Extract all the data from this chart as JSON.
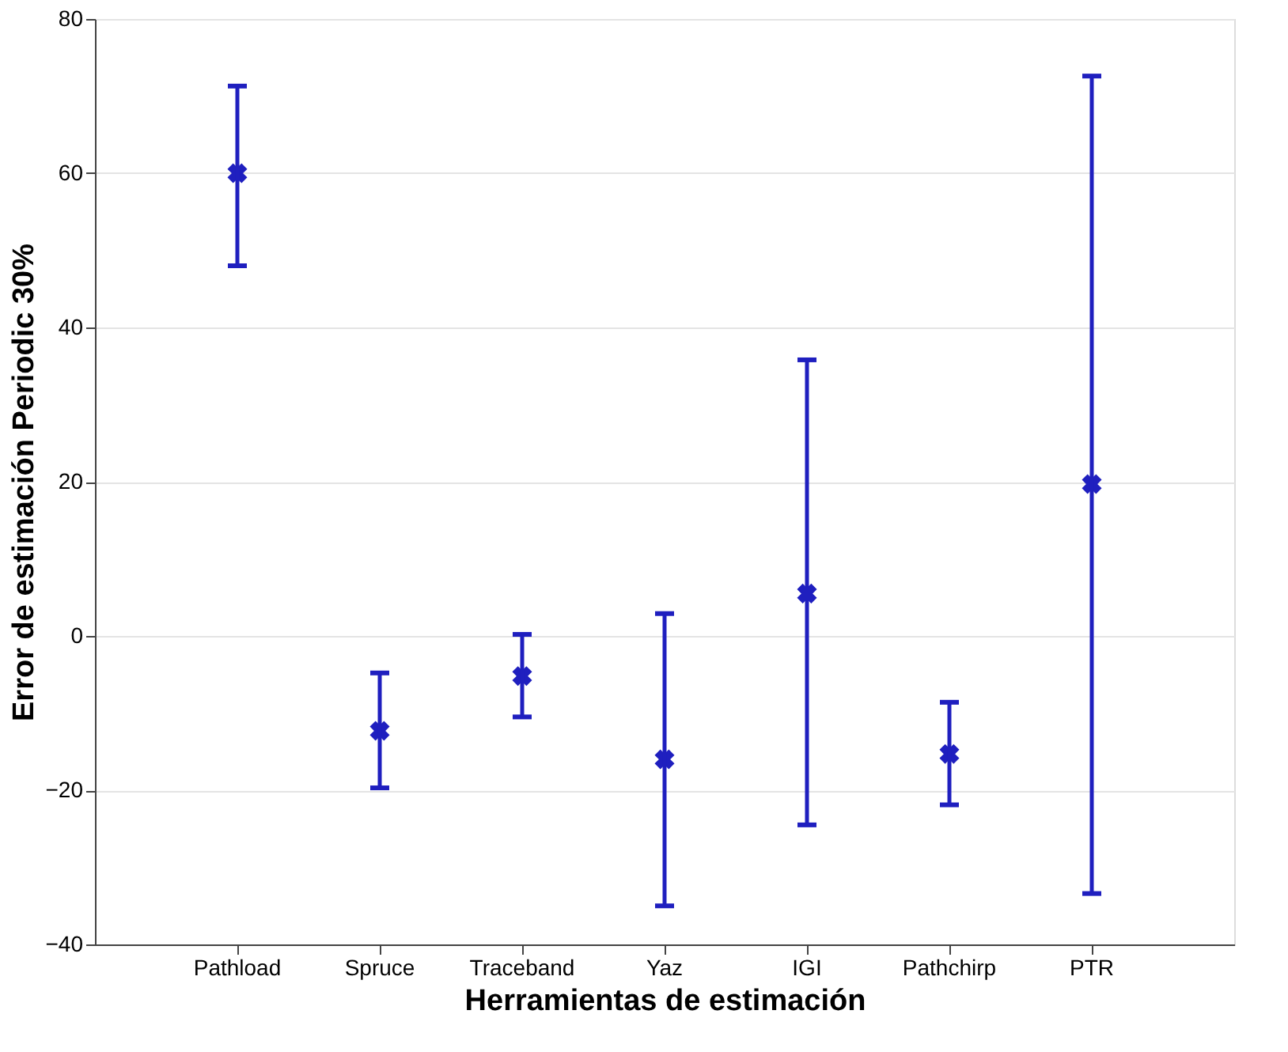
{
  "chart_data": {
    "type": "scatter",
    "xlabel": "Herramientas de estimación",
    "ylabel": "Error de estimación Periodic 30%",
    "categories": [
      "Pathload",
      "Spruce",
      "Traceband",
      "Yaz",
      "IGI",
      "Pathchirp",
      "PTR"
    ],
    "values": [
      60,
      -12.3,
      -5.2,
      -16,
      5.5,
      -15.3,
      19.7
    ],
    "errors": [
      [
        48,
        71.3
      ],
      [
        -19.7,
        -4.8
      ],
      [
        -10.5,
        0.2
      ],
      [
        -35,
        2.9
      ],
      [
        -24.5,
        35.8
      ],
      [
        -21.9,
        -8.6
      ],
      [
        -33.4,
        72.6
      ]
    ],
    "color": "#1f1fbf",
    "marker": "cross",
    "ylim": [
      -40,
      80
    ],
    "yticks": [
      -40,
      -20,
      0,
      20,
      40,
      60,
      80
    ],
    "grid": "y"
  }
}
